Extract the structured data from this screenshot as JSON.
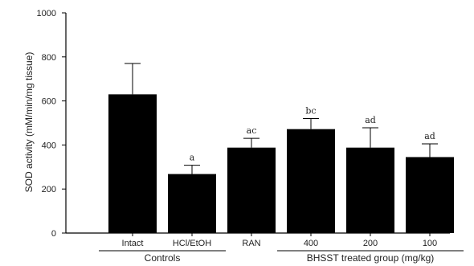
{
  "chart_data": {
    "type": "bar",
    "ylabel": "SOD activity (mM/min/mg tissue)",
    "ylim": [
      0,
      1000
    ],
    "yticks": [
      0,
      200,
      400,
      600,
      800,
      1000
    ],
    "categories": [
      "Intact",
      "HCl/EtOH",
      "RAN",
      "400",
      "200",
      "100"
    ],
    "values": [
      630,
      268,
      388,
      472,
      388,
      345
    ],
    "errors": [
      140,
      40,
      42,
      48,
      90,
      60
    ],
    "significance": [
      "",
      "a",
      "ac",
      "bc",
      "ad",
      "ad"
    ],
    "groups": [
      {
        "label": "Controls",
        "from": 0,
        "to": 1
      },
      {
        "label": "BHSST treated group (mg/kg)",
        "from": 3,
        "to": 5
      }
    ],
    "bar_color": "#000000"
  }
}
